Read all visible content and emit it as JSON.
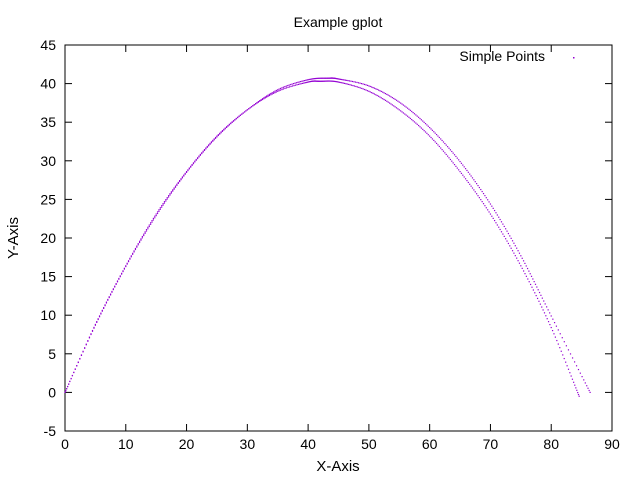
{
  "chart_data": {
    "type": "scatter",
    "title": "Example gplot",
    "xlabel": "X-Axis",
    "ylabel": "Y-Axis",
    "xlim": [
      0,
      90
    ],
    "ylim": [
      -5,
      45
    ],
    "x_ticks": [
      "0",
      "10",
      "20",
      "30",
      "40",
      "50",
      "60",
      "70",
      "80",
      "90"
    ],
    "y_ticks": [
      "-5",
      "0",
      "5",
      "10",
      "15",
      "20",
      "25",
      "30",
      "35",
      "40",
      "45"
    ],
    "grid": false,
    "legend_position": "top-right",
    "colors": {
      "series": "#9400d3",
      "axes": "#000000",
      "background": "#ffffff"
    },
    "series": [
      {
        "name": "Simple Points",
        "style": "points",
        "color": "#9400d3",
        "x": [
          0,
          5,
          10,
          15,
          20,
          25,
          30,
          35,
          40,
          42,
          45,
          50,
          55,
          60,
          65,
          70,
          75,
          80,
          84.6
        ],
        "y": [
          0,
          8.8,
          16.4,
          23.1,
          28.6,
          33.2,
          36.6,
          39,
          40.2,
          40.3,
          40.2,
          39,
          36.6,
          33.2,
          28.6,
          23.1,
          16.4,
          8.4,
          -0.5
        ]
      },
      {
        "name": "",
        "style": "points",
        "color": "#9400d3",
        "x": [
          0,
          5,
          10,
          15,
          20,
          25,
          30,
          35,
          40,
          43.2,
          45,
          50,
          55,
          60,
          65,
          70,
          75,
          80,
          86.4
        ],
        "y": [
          0,
          8.7,
          16.3,
          22.9,
          28.5,
          33.1,
          36.6,
          39.2,
          40.5,
          40.7,
          40.6,
          39.7,
          37.6,
          34.3,
          29.9,
          24.4,
          17.7,
          9.9,
          0
        ]
      }
    ]
  }
}
